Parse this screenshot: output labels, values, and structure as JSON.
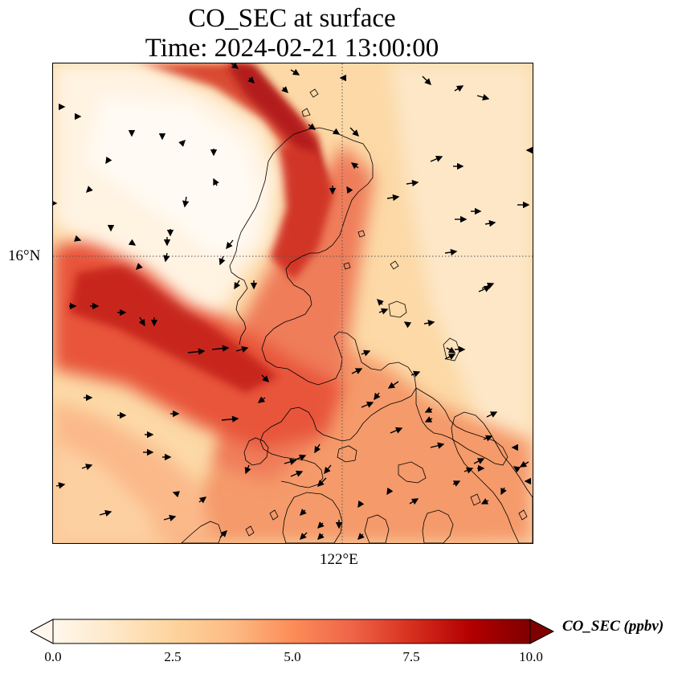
{
  "title": {
    "line1": "CO_SEC at surface",
    "line2": "Time: 2024-02-21 13:00:00"
  },
  "map": {
    "lat_gridline_label": "16°N",
    "lon_gridline_label": "122°E",
    "coastline_color": "#000000",
    "gridline_style": "dotted"
  },
  "colorbar": {
    "label": "CO_SEC (ppbv)",
    "ticks": [
      "0.0",
      "2.5",
      "5.0",
      "7.5",
      "10.0"
    ],
    "range": [
      0,
      10
    ],
    "colormap": "OrRd",
    "extend": "both"
  },
  "colors": {
    "low": "#fff7ec",
    "mid": "#fc8d59",
    "high": "#7f0000"
  }
}
